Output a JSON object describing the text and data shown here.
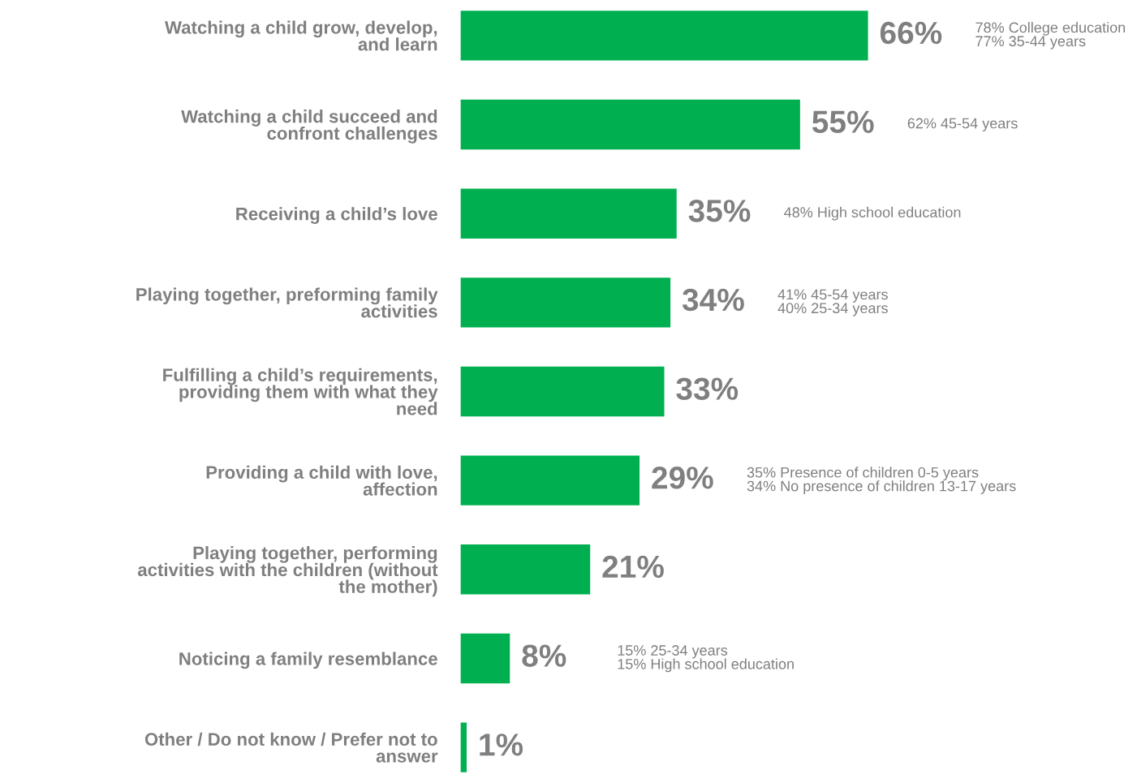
{
  "chart_data": {
    "type": "bar",
    "orientation": "horizontal",
    "tick_labels": "y",
    "grid": false,
    "legend": false,
    "categories": [
      "Watching a child grow, develop,\nand learn",
      "Watching a child succeed and\nconfront challenges",
      "Receiving a child’s love",
      "Playing together, preforming family\nactivities",
      "Fulfilling a child’s requirements,\nproviding them with what they\nneed",
      "Providing a child with love,\naffection",
      "Playing together, performing\nactivities with the children (without\nthe mother)",
      "Noticing a family resemblance",
      "Other / Do not know / Prefer not to\nanswer"
    ],
    "values": [
      66,
      55,
      35,
      34,
      33,
      29,
      21,
      8,
      1
    ],
    "color": "#00b050",
    "value_labels": [
      "66%",
      "55%",
      "35%",
      "34%",
      "33%",
      "29%",
      "21%",
      "8%",
      "1%"
    ],
    "annotations": [
      "78% College education\n77% 35-44 years",
      "62% 45-54 years",
      "48% High school education",
      "41% 45-54 years\n40% 25-34 years",
      "35% Presence of children 0-5 years\n34% No presence of children 13-17 years",
      "15% 25-34 years\n15% High school education"
    ]
  }
}
